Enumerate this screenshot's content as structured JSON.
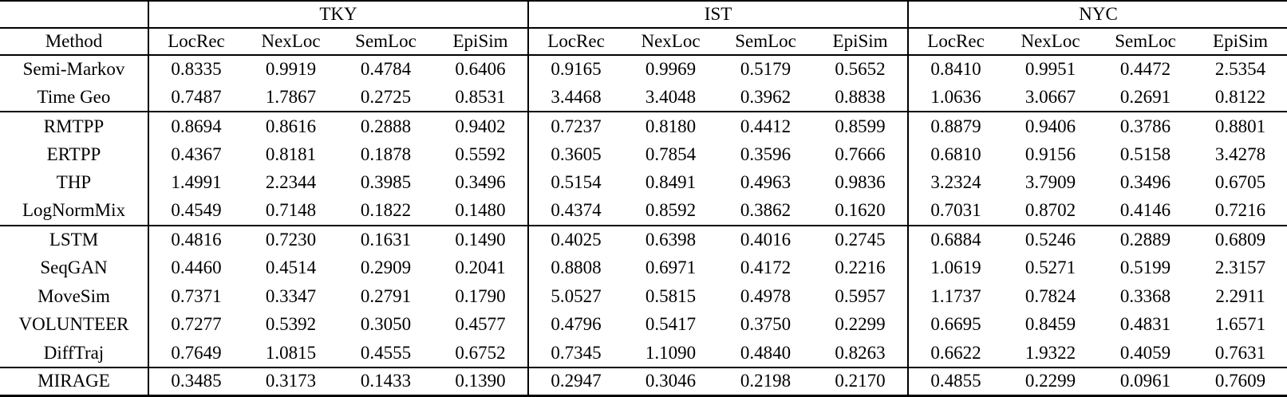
{
  "colors": {
    "background": "#ffffff",
    "text": "#000000",
    "rule": "#000000"
  },
  "table": {
    "corner_label": "Method",
    "dataset_groups": [
      "TKY",
      "IST",
      "NYC"
    ],
    "metric_labels": [
      "LocRec",
      "NexLoc",
      "SemLoc",
      "EpiSim"
    ],
    "row_groups": [
      {
        "rows": [
          {
            "method": "Semi-Markov",
            "values": [
              "0.8335",
              "0.9919",
              "0.4784",
              "0.6406",
              "0.9165",
              "0.9969",
              "0.5179",
              "0.5652",
              "0.8410",
              "0.9951",
              "0.4472",
              "2.5354"
            ],
            "bold": []
          },
          {
            "method": "Time Geo",
            "values": [
              "0.7487",
              "1.7867",
              "0.2725",
              "0.8531",
              "3.4468",
              "3.4048",
              "0.3962",
              "0.8838",
              "1.0636",
              "3.0667",
              "0.2691",
              "0.8122"
            ],
            "bold": []
          }
        ]
      },
      {
        "rows": [
          {
            "method": "RMTPP",
            "values": [
              "0.8694",
              "0.8616",
              "0.2888",
              "0.9402",
              "0.7237",
              "0.8180",
              "0.4412",
              "0.8599",
              "0.8879",
              "0.9406",
              "0.3786",
              "0.8801"
            ],
            "bold": []
          },
          {
            "method": "ERTPP",
            "values": [
              "0.4367",
              "0.8181",
              "0.1878",
              "0.5592",
              "0.3605",
              "0.7854",
              "0.3596",
              "0.7666",
              "0.6810",
              "0.9156",
              "0.5158",
              "3.4278"
            ],
            "bold": []
          },
          {
            "method": "THP",
            "values": [
              "1.4991",
              "2.2344",
              "0.3985",
              "0.3496",
              "0.5154",
              "0.8491",
              "0.4963",
              "0.9836",
              "3.2324",
              "3.7909",
              "0.3496",
              "0.6705"
            ],
            "bold": [
              11
            ]
          },
          {
            "method": "LogNormMix",
            "values": [
              "0.4549",
              "0.7148",
              "0.1822",
              "0.1480",
              "0.4374",
              "0.8592",
              "0.3862",
              "0.1620",
              "0.7031",
              "0.8702",
              "0.4146",
              "0.7216"
            ],
            "bold": [
              7
            ]
          }
        ]
      },
      {
        "rows": [
          {
            "method": "LSTM",
            "values": [
              "0.4816",
              "0.7230",
              "0.1631",
              "0.1490",
              "0.4025",
              "0.6398",
              "0.4016",
              "0.2745",
              "0.6884",
              "0.5246",
              "0.2889",
              "0.6809"
            ],
            "bold": []
          },
          {
            "method": "SeqGAN",
            "values": [
              "0.4460",
              "0.4514",
              "0.2909",
              "0.2041",
              "0.8808",
              "0.6971",
              "0.4172",
              "0.2216",
              "1.0619",
              "0.5271",
              "0.5199",
              "2.3157"
            ],
            "bold": []
          },
          {
            "method": "MoveSim",
            "values": [
              "0.7371",
              "0.3347",
              "0.2791",
              "0.1790",
              "5.0527",
              "0.5815",
              "0.4978",
              "0.5957",
              "1.1737",
              "0.7824",
              "0.3368",
              "2.2911"
            ],
            "bold": []
          },
          {
            "method": "VOLUNTEER",
            "values": [
              "0.7277",
              "0.5392",
              "0.3050",
              "0.4577",
              "0.4796",
              "0.5417",
              "0.3750",
              "0.2299",
              "0.6695",
              "0.8459",
              "0.4831",
              "1.6571"
            ],
            "bold": []
          },
          {
            "method": "DiffTraj",
            "values": [
              "0.7649",
              "1.0815",
              "0.4555",
              "0.6752",
              "0.7345",
              "1.1090",
              "0.4840",
              "0.8263",
              "0.6622",
              "1.9322",
              "0.4059",
              "0.7631"
            ],
            "bold": []
          }
        ]
      },
      {
        "rows": [
          {
            "method": "MIRAGE",
            "values": [
              "0.3485",
              "0.3173",
              "0.1433",
              "0.1390",
              "0.2947",
              "0.3046",
              "0.2198",
              "0.2170",
              "0.4855",
              "0.2299",
              "0.0961",
              "0.7609"
            ],
            "bold": [
              0,
              1,
              2,
              3,
              4,
              5,
              6,
              8,
              9,
              10
            ]
          }
        ]
      }
    ]
  }
}
